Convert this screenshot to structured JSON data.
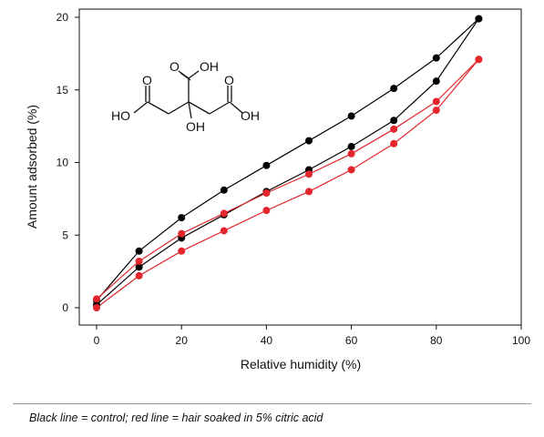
{
  "chart_data": {
    "type": "line",
    "xlabel": "Relative humidity (%)",
    "ylabel": "Amount adsorbed (%)",
    "xlim": [
      0,
      100
    ],
    "ylim": [
      0,
      20
    ],
    "xticks": [
      0,
      20,
      40,
      60,
      80,
      100
    ],
    "yticks": [
      0,
      5,
      10,
      15,
      20
    ],
    "grid": false,
    "series": [
      {
        "color": "#000000",
        "x": [
          0,
          10,
          20,
          30,
          40,
          50,
          60,
          70,
          80,
          90
        ],
        "values": [
          0.5,
          3.9,
          6.2,
          8.1,
          9.8,
          11.5,
          13.2,
          15.1,
          17.2,
          19.9
        ]
      },
      {
        "color": "#000000",
        "x": [
          0,
          10,
          20,
          30,
          40,
          50,
          60,
          70,
          80,
          90
        ],
        "values": [
          0.2,
          2.8,
          4.8,
          6.4,
          8.0,
          9.5,
          11.1,
          12.9,
          15.6,
          19.9
        ]
      },
      {
        "color": "#e3262c",
        "x": [
          0,
          10,
          20,
          30,
          40,
          50,
          60,
          70,
          80,
          90
        ],
        "values": [
          0.6,
          3.2,
          5.1,
          6.5,
          7.9,
          9.2,
          10.6,
          12.3,
          14.2,
          17.1
        ]
      },
      {
        "color": "#e3262c",
        "x": [
          0,
          10,
          20,
          30,
          40,
          50,
          60,
          70,
          80,
          90
        ],
        "values": [
          0.0,
          2.2,
          3.9,
          5.3,
          6.7,
          8.0,
          9.5,
          11.3,
          13.6,
          17.1
        ]
      }
    ]
  },
  "molecule": {
    "top_group": "O",
    "top_oh": "OH",
    "left_ho": "HO",
    "right_oh": "OH",
    "center_oh": "OH",
    "left_o": "O",
    "right_o": "O"
  },
  "caption": "Black line = control; red line = hair soaked in 5% citric acid"
}
